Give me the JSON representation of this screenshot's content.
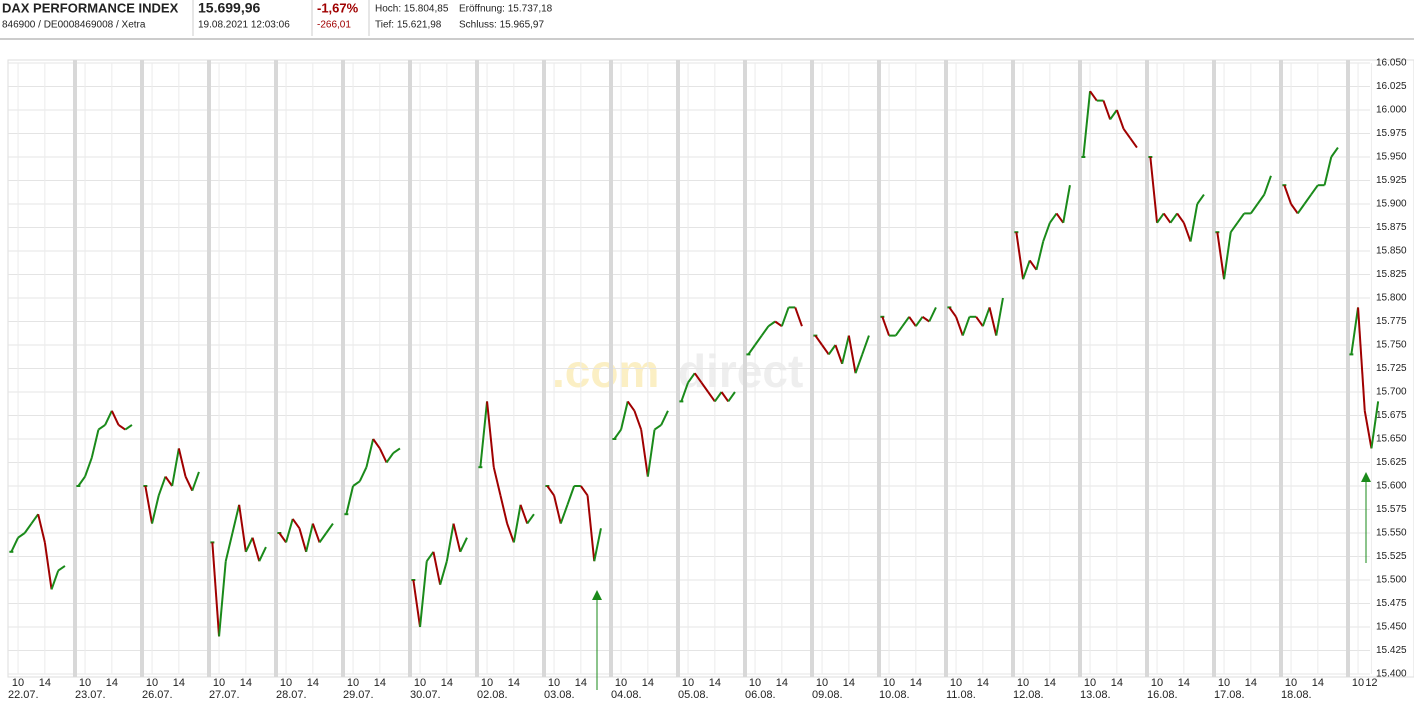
{
  "header": {
    "title": "DAX PERFORMANCE INDEX",
    "subtitle": "846900 / DE0008469008 / Xetra",
    "price": "15.699,96",
    "timestamp": "19.08.2021 12:03:06",
    "change_pct": "-1,67%",
    "change_abs": "-266,01",
    "high": "Hoch: 15.804,85",
    "open": "Eröffnung: 15.737,18",
    "low": "Tief: 15.621,98",
    "close": "Schluss: 15.965,97"
  },
  "watermark": [
    ".com",
    "direct"
  ],
  "chart_data": {
    "type": "line",
    "up_color": "#1a8a1a",
    "down_color": "#a00000",
    "ylim": [
      15400,
      16050
    ],
    "yticks": [
      {
        "value": 15400,
        "label": "15.400"
      },
      {
        "value": 15425,
        "label": "15.425"
      },
      {
        "value": 15450,
        "label": "15.450"
      },
      {
        "value": 15475,
        "label": "15.475"
      },
      {
        "value": 15500,
        "label": "15.500"
      },
      {
        "value": 15525,
        "label": "15.525"
      },
      {
        "value": 15550,
        "label": "15.550"
      },
      {
        "value": 15575,
        "label": "15.575"
      },
      {
        "value": 15600,
        "label": "15.600"
      },
      {
        "value": 15625,
        "label": "15.625"
      },
      {
        "value": 15650,
        "label": "15.650"
      },
      {
        "value": 15675,
        "label": "15.675"
      },
      {
        "value": 15700,
        "label": "15.700"
      },
      {
        "value": 15725,
        "label": "15.725"
      },
      {
        "value": 15750,
        "label": "15.750"
      },
      {
        "value": 15775,
        "label": "15.775"
      },
      {
        "value": 15800,
        "label": "15.800"
      },
      {
        "value": 15825,
        "label": "15.825"
      },
      {
        "value": 15850,
        "label": "15.850"
      },
      {
        "value": 15875,
        "label": "15.875"
      },
      {
        "value": 15900,
        "label": "15.900"
      },
      {
        "value": 15925,
        "label": "15.925"
      },
      {
        "value": 15950,
        "label": "15.950"
      },
      {
        "value": 15975,
        "label": "15.975"
      },
      {
        "value": 16000,
        "label": "16.000"
      },
      {
        "value": 16025,
        "label": "16.025"
      },
      {
        "value": 16050,
        "label": "16.050"
      }
    ],
    "hours": [
      9,
      10,
      11,
      12,
      13,
      14,
      15,
      16,
      17
    ],
    "days": [
      {
        "date": "22.07.",
        "hour_ticks": [
          10,
          14
        ],
        "values": [
          15530,
          15545,
          15550,
          15560,
          15570,
          15540,
          15490,
          15510,
          15515
        ]
      },
      {
        "date": "23.07.",
        "hour_ticks": [
          10,
          14
        ],
        "values": [
          15600,
          15610,
          15630,
          15660,
          15665,
          15680,
          15665,
          15660,
          15665
        ]
      },
      {
        "date": "26.07.",
        "hour_ticks": [
          10,
          14
        ],
        "values": [
          15600,
          15560,
          15590,
          15610,
          15600,
          15640,
          15610,
          15595,
          15615
        ]
      },
      {
        "date": "27.07.",
        "hour_ticks": [
          10,
          14
        ],
        "values": [
          15540,
          15440,
          15520,
          15550,
          15580,
          15530,
          15545,
          15520,
          15535
        ]
      },
      {
        "date": "28.07.",
        "hour_ticks": [
          10,
          14
        ],
        "values": [
          15550,
          15540,
          15565,
          15555,
          15530,
          15560,
          15540,
          15550,
          15560
        ]
      },
      {
        "date": "29.07.",
        "hour_ticks": [
          10,
          14
        ],
        "values": [
          15570,
          15600,
          15605,
          15620,
          15650,
          15640,
          15625,
          15635,
          15640
        ]
      },
      {
        "date": "30.07.",
        "hour_ticks": [
          10,
          14
        ],
        "values": [
          15500,
          15450,
          15520,
          15530,
          15495,
          15520,
          15560,
          15530,
          15545
        ]
      },
      {
        "date": "02.08.",
        "hour_ticks": [
          10,
          14
        ],
        "values": [
          15620,
          15690,
          15620,
          15590,
          15560,
          15540,
          15580,
          15560,
          15570
        ]
      },
      {
        "date": "03.08.",
        "hour_ticks": [
          10,
          14
        ],
        "values": [
          15600,
          15590,
          15560,
          15580,
          15600,
          15600,
          15590,
          15520,
          15555
        ]
      },
      {
        "date": "04.08.",
        "hour_ticks": [
          10,
          14
        ],
        "values": [
          15650,
          15660,
          15690,
          15680,
          15660,
          15610,
          15660,
          15665,
          15680
        ]
      },
      {
        "date": "05.08.",
        "hour_ticks": [
          10,
          14
        ],
        "values": [
          15690,
          15710,
          15720,
          15710,
          15700,
          15690,
          15700,
          15690,
          15700
        ]
      },
      {
        "date": "06.08.",
        "hour_ticks": [
          10,
          14
        ],
        "values": [
          15740,
          15750,
          15760,
          15770,
          15775,
          15770,
          15790,
          15790,
          15770
        ]
      },
      {
        "date": "09.08.",
        "hour_ticks": [
          10,
          14
        ],
        "values": [
          15760,
          15750,
          15740,
          15750,
          15730,
          15760,
          15720,
          15740,
          15760
        ]
      },
      {
        "date": "10.08.",
        "hour_ticks": [
          10,
          14
        ],
        "values": [
          15780,
          15760,
          15760,
          15770,
          15780,
          15770,
          15780,
          15775,
          15790
        ]
      },
      {
        "date": "11.08.",
        "hour_ticks": [
          10,
          14
        ],
        "values": [
          15790,
          15780,
          15760,
          15780,
          15780,
          15770,
          15790,
          15760,
          15800
        ]
      },
      {
        "date": "12.08.",
        "hour_ticks": [
          10,
          14
        ],
        "values": [
          15870,
          15820,
          15840,
          15830,
          15860,
          15880,
          15890,
          15880,
          15920
        ]
      },
      {
        "date": "13.08.",
        "hour_ticks": [
          10,
          14
        ],
        "values": [
          15950,
          16020,
          16010,
          16010,
          15990,
          16000,
          15980,
          15970,
          15960
        ]
      },
      {
        "date": "16.08.",
        "hour_ticks": [
          10,
          14
        ],
        "values": [
          15950,
          15880,
          15890,
          15880,
          15890,
          15880,
          15860,
          15900,
          15910
        ]
      },
      {
        "date": "17.08.",
        "hour_ticks": [
          10,
          14
        ],
        "values": [
          15870,
          15820,
          15870,
          15880,
          15890,
          15890,
          15900,
          15910,
          15930
        ]
      },
      {
        "date": "18.08.",
        "hour_ticks": [
          10,
          14
        ],
        "values": [
          15920,
          15900,
          15890,
          15900,
          15910,
          15920,
          15920,
          15950,
          15960
        ]
      },
      {
        "date": null,
        "hour_ticks": [
          10,
          12
        ],
        "values": [
          15740,
          15790,
          15680,
          15640,
          15690,
          null,
          null,
          null,
          null
        ]
      }
    ]
  }
}
